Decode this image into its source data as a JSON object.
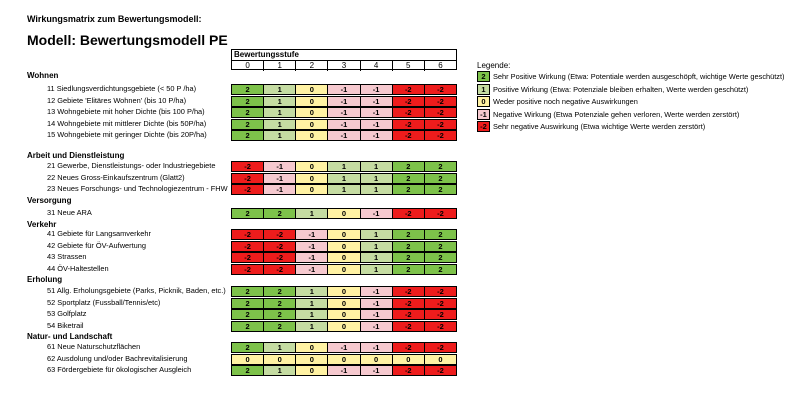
{
  "header": {
    "subtitle": "Wirkungsmatrix zum Bewertungsmodell:",
    "title": "Modell: Bewertungsmodell PE"
  },
  "scale": {
    "title": "Bewertungsstufe",
    "levels": [
      "0",
      "1",
      "2",
      "3",
      "4",
      "5",
      "6"
    ]
  },
  "colors": {
    "2": "#7dc24a",
    "1": "#c5dca2",
    "0": "#fff2a3",
    "-1": "#f6c9cf",
    "-2": "#ee1c1c"
  },
  "legend": {
    "title": "Legende:",
    "items": [
      {
        "value": "2",
        "text": "Sehr Positive Wirkung (Etwa: Potentiale werden ausgeschöpft, wichtige Werte geschützt)"
      },
      {
        "value": "1",
        "text": "Positive Wirkung (Etwa: Potenziale bleiben erhalten, Werte werden geschützt)"
      },
      {
        "value": "0",
        "text": "Weder positive noch negative Auswirkungen"
      },
      {
        "value": "-1",
        "text": "Negative Wirkung (Etwa Potenziale gehen verloren, Werte werden zerstört)"
      },
      {
        "value": "-2",
        "text": "Sehr negative Auswirkung (Etwa wichtige Werte werden zerstört)"
      }
    ]
  },
  "sections": [
    {
      "name": "Wohnen",
      "rows": [
        {
          "label": "11 Siedlungsverdichtungsgebiete (< 50 P /ha)",
          "values": [
            "2",
            "1",
            "0",
            "-1",
            "-1",
            "-2",
            "-2"
          ]
        },
        {
          "label": "12 Gebiete 'Elitäres Wohnen' (bis 10 P/ha)",
          "values": [
            "2",
            "1",
            "0",
            "-1",
            "-1",
            "-2",
            "-2"
          ]
        },
        {
          "label": "13 Wohngebiete mit hoher Dichte (bis 100 P/ha)",
          "values": [
            "2",
            "1",
            "0",
            "-1",
            "-1",
            "-2",
            "-2"
          ]
        },
        {
          "label": "14 Wohngebiete mit mittlerer Dichte (bis 50P/ha)",
          "values": [
            "2",
            "1",
            "0",
            "-1",
            "-1",
            "-2",
            "-2"
          ]
        },
        {
          "label": "15 Wohngebiete mit geringer Dichte (bis 20P/ha)",
          "values": [
            "2",
            "1",
            "0",
            "-1",
            "-1",
            "-2",
            "-2"
          ]
        }
      ]
    },
    {
      "name": "Arbeit und Dienstleistung",
      "rows": [
        {
          "label": "21 Gewerbe, Dienstleistungs- oder Industriegebiete",
          "values": [
            "-2",
            "-1",
            "0",
            "1",
            "1",
            "2",
            "2"
          ]
        },
        {
          "label": "22 Neues Gross-Einkaufszentrum (Glatt2)",
          "values": [
            "-2",
            "-1",
            "0",
            "1",
            "1",
            "2",
            "2"
          ]
        },
        {
          "label": "23 Neues Forschungs- und Technologiezentrum - FHW",
          "values": [
            "-2",
            "-1",
            "0",
            "1",
            "1",
            "2",
            "2"
          ]
        }
      ]
    },
    {
      "name": "Versorgung",
      "rows": [
        {
          "label": "31 Neue ARA",
          "values": [
            "2",
            "2",
            "1",
            "0",
            "-1",
            "-2",
            "-2"
          ]
        }
      ]
    },
    {
      "name": "Verkehr",
      "rows": [
        {
          "label": "41 Gebiete für Langsamverkehr",
          "values": [
            "-2",
            "-2",
            "-1",
            "0",
            "1",
            "2",
            "2"
          ]
        },
        {
          "label": "42 Gebiete für ÖV-Aufwertung",
          "values": [
            "-2",
            "-2",
            "-1",
            "0",
            "1",
            "2",
            "2"
          ]
        },
        {
          "label": "43 Strassen",
          "values": [
            "-2",
            "-2",
            "-1",
            "0",
            "1",
            "2",
            "2"
          ]
        },
        {
          "label": "44 ÖV-Haltestellen",
          "values": [
            "-2",
            "-2",
            "-1",
            "0",
            "1",
            "2",
            "2"
          ]
        }
      ]
    },
    {
      "name": "Erholung",
      "rows": [
        {
          "label": "51 Allg. Erholungsgebiete (Parks, Picknik, Baden, etc.)",
          "values": [
            "2",
            "2",
            "1",
            "0",
            "-1",
            "-2",
            "-2"
          ]
        },
        {
          "label": "52 Sportplatz (Fussball/Tennis/etc)",
          "values": [
            "2",
            "2",
            "1",
            "0",
            "-1",
            "-2",
            "-2"
          ]
        },
        {
          "label": "53 Golfplatz",
          "values": [
            "2",
            "2",
            "1",
            "0",
            "-1",
            "-2",
            "-2"
          ]
        },
        {
          "label": "54 Biketrail",
          "values": [
            "2",
            "2",
            "1",
            "0",
            "-1",
            "-2",
            "-2"
          ]
        }
      ]
    },
    {
      "name": "Natur- und Landschaft",
      "rows": [
        {
          "label": "61 Neue Naturschutzflächen",
          "values": [
            "2",
            "1",
            "0",
            "-1",
            "-1",
            "-2",
            "-2"
          ]
        },
        {
          "label": "62 Ausdolung und/oder Bachrevitalisierung",
          "values": [
            "0",
            "0",
            "0",
            "0",
            "0",
            "0",
            "0"
          ]
        },
        {
          "label": "63 Fördergebiete für ökologischer Ausgleich",
          "values": [
            "2",
            "1",
            "0",
            "-1",
            "-1",
            "-2",
            "-2"
          ]
        }
      ]
    }
  ]
}
